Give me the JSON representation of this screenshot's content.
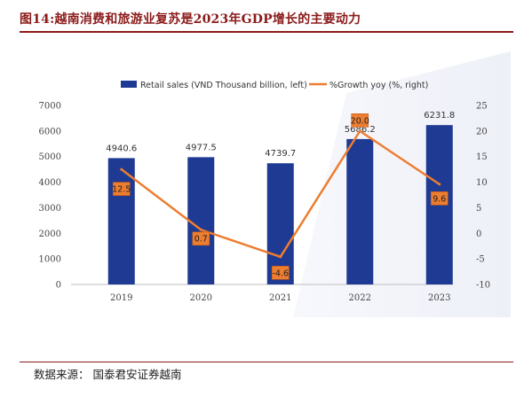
{
  "header": {
    "title": "图14:越南消费和旅游业复苏是2023年GDP增长的主要动力"
  },
  "footer": {
    "source": "数据来源： 国泰君安证券越南"
  },
  "colors": {
    "bar": "#1f3a93",
    "line": "#ed7d31",
    "label_fill": "#ed7d31",
    "rule": "#8b1a1a",
    "bg_panel": "#eef0f8"
  },
  "chart_data": {
    "type": "bar",
    "categories": [
      "2019",
      "2020",
      "2021",
      "2022",
      "2023"
    ],
    "series": [
      {
        "name": "Retail sales (VND Thousand billion, left)",
        "type": "bar",
        "axis": "left",
        "values": [
          4940.6,
          4977.5,
          4739.7,
          5686.2,
          6231.8
        ],
        "labels": [
          "4940.6",
          "4977.5",
          "4739.7",
          "5686.2",
          "6231.8"
        ]
      },
      {
        "name": "%Growth yoy (%, right)",
        "type": "line",
        "axis": "right",
        "values": [
          12.5,
          0.7,
          -4.6,
          20.0,
          9.6
        ],
        "labels": [
          "12.5",
          "0.7",
          "-4.6",
          "20.0",
          "9.6"
        ]
      }
    ],
    "y_left": {
      "min": 0,
      "max": 7000,
      "ticks": [
        "0",
        "1000",
        "2000",
        "3000",
        "4000",
        "5000",
        "6000",
        "7000"
      ]
    },
    "y_right": {
      "min": -10,
      "max": 25,
      "ticks": [
        "-10",
        "-5",
        "0",
        "5",
        "10",
        "15",
        "20",
        "25"
      ]
    },
    "legend_position": "top",
    "grid": false
  }
}
